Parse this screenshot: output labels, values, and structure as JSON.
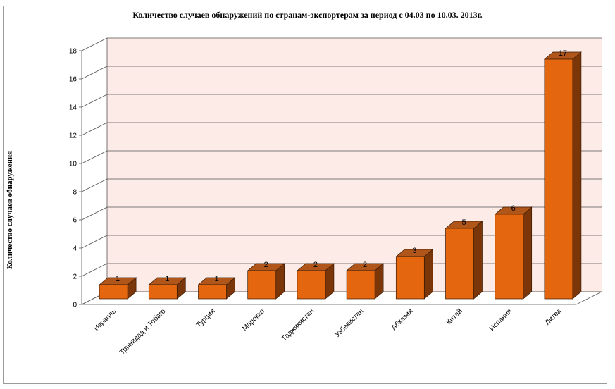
{
  "chart_data": {
    "type": "bar",
    "title": "Количество случаев обнаружений по странам-экспортерам за период с 04.03 по 10.03. 2013г.",
    "ylabel": "Количество случаев обнаружения",
    "xlabel": "",
    "categories": [
      "Израиль",
      "Тринидад и Тобаго",
      "Турция",
      "Марокко",
      "Таджикистан",
      "Узбекистан",
      "Абхазия",
      "Китай",
      "Испания",
      "Литва"
    ],
    "values": [
      1,
      1,
      1,
      2,
      2,
      2,
      3,
      5,
      6,
      17
    ],
    "ylim": [
      0,
      18
    ],
    "yticks": [
      "0",
      "2",
      "4",
      "6",
      "8",
      "10",
      "12",
      "14",
      "16",
      "18"
    ],
    "grid": true,
    "legend": "none",
    "colors": {
      "bar_front": "#e4660e",
      "bar_top": "#b0561a",
      "bar_side": "#7a3608",
      "back_wall": "#fcebe6",
      "grid": "#555555"
    }
  }
}
